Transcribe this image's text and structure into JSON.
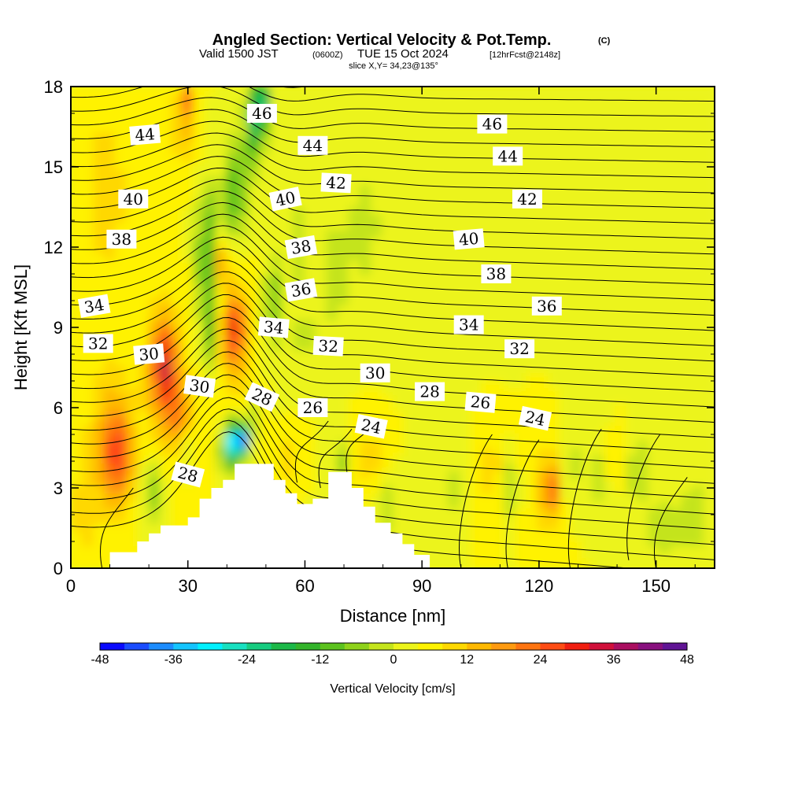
{
  "header": {
    "title_main": "Angled Section: Vertical Velocity & Pot.Temp.",
    "title_mark": "(C)",
    "valid_prefix": "Valid 1500 JST",
    "valid_utc": "(0600Z)",
    "valid_date": "TUE 15 Oct 2024",
    "forecast": "[12hrFcst@2148z]",
    "slice": "slice X,Y= 34,23@135°"
  },
  "colors": {
    "velocity_palette": [
      "#0a0aff",
      "#1a4cff",
      "#1c8cff",
      "#14c4ff",
      "#00f0ff",
      "#17e0c0",
      "#16cc80",
      "#1cb848",
      "#33b42a",
      "#5cc21e",
      "#8ed21a",
      "#c4e41c",
      "#ecf41a",
      "#fff200",
      "#ffd800",
      "#ffb800",
      "#ff9a10",
      "#ff7410",
      "#ff4c14",
      "#f01e10",
      "#d0103a",
      "#aa0e60",
      "#88107e",
      "#601494"
    ],
    "contour": "#000000",
    "terrain": "#ffffff"
  },
  "chart_data": {
    "type": "heatmap",
    "title": "Angled Section: Vertical Velocity & Pot.Temp.",
    "xlabel": "Distance [nm]",
    "ylabel": "Height [Kft MSL]",
    "xlim": [
      0,
      165
    ],
    "ylim": [
      0,
      18
    ],
    "x_ticks": [
      0,
      30,
      60,
      90,
      120,
      150
    ],
    "y_ticks": [
      0,
      3,
      6,
      9,
      12,
      15,
      18
    ],
    "colorbar": {
      "label": "Vertical Velocity [cm/s]",
      "min": -48,
      "max": 48,
      "step": 4,
      "ticks": [
        -48,
        -36,
        -24,
        -12,
        0,
        12,
        24,
        36,
        48
      ]
    },
    "terrain_profile": [
      [
        0,
        0
      ],
      [
        10,
        0
      ],
      [
        10,
        0.6
      ],
      [
        17,
        0.6
      ],
      [
        17,
        1.0
      ],
      [
        20,
        1.0
      ],
      [
        20,
        1.3
      ],
      [
        23,
        1.3
      ],
      [
        23,
        1.6
      ],
      [
        30,
        1.6
      ],
      [
        30,
        1.9
      ],
      [
        33,
        1.9
      ],
      [
        33,
        2.6
      ],
      [
        36,
        2.6
      ],
      [
        36,
        3.0
      ],
      [
        39,
        3.0
      ],
      [
        39,
        3.3
      ],
      [
        42,
        3.3
      ],
      [
        42,
        3.9
      ],
      [
        52,
        3.9
      ],
      [
        52,
        3.3
      ],
      [
        55,
        3.3
      ],
      [
        55,
        2.8
      ],
      [
        58,
        2.8
      ],
      [
        58,
        2.4
      ],
      [
        62,
        2.4
      ],
      [
        62,
        2.6
      ],
      [
        66,
        2.6
      ],
      [
        66,
        3.6
      ],
      [
        72,
        3.6
      ],
      [
        72,
        3.0
      ],
      [
        75,
        3.0
      ],
      [
        75,
        2.3
      ],
      [
        78,
        2.3
      ],
      [
        78,
        1.7
      ],
      [
        82,
        1.7
      ],
      [
        82,
        1.3
      ],
      [
        85,
        1.3
      ],
      [
        85,
        0.9
      ],
      [
        88,
        0.9
      ],
      [
        88,
        0.5
      ],
      [
        92,
        0.5
      ],
      [
        92,
        0
      ],
      [
        165,
        0
      ]
    ],
    "isentropes": [
      {
        "theta": 24,
        "label_at": [
          77,
          5.3
        ]
      },
      {
        "theta": 26,
        "label_at": [
          62,
          6.0
        ]
      },
      {
        "theta": 28,
        "label_at": [
          49,
          6.4
        ]
      },
      {
        "theta": 30,
        "label_at": [
          40,
          7.5
        ]
      },
      {
        "theta": 32,
        "label_at": [
          66,
          8.3
        ]
      },
      {
        "theta": 34,
        "label_at": [
          52,
          9.0
        ]
      },
      {
        "theta": 36,
        "label_at": [
          59,
          10.4
        ]
      },
      {
        "theta": 38,
        "label_at": [
          59,
          12.0
        ]
      },
      {
        "theta": 40,
        "label_at": [
          55,
          13.8
        ]
      },
      {
        "theta": 42,
        "label_at": [
          68,
          14.4
        ]
      },
      {
        "theta": 44,
        "label_at": [
          60,
          15.8
        ]
      },
      {
        "theta": 46,
        "label_at": [
          45,
          17.0
        ]
      }
    ],
    "contour_labels": [
      {
        "text": "46",
        "x": 49,
        "y": 17.0,
        "rot": 0
      },
      {
        "text": "46",
        "x": 108,
        "y": 16.6,
        "rot": 0
      },
      {
        "text": "44",
        "x": 19,
        "y": 16.2,
        "rot": 5
      },
      {
        "text": "44",
        "x": 62,
        "y": 15.8,
        "rot": 0
      },
      {
        "text": "44",
        "x": 112,
        "y": 15.4,
        "rot": 0
      },
      {
        "text": "42",
        "x": 68,
        "y": 14.4,
        "rot": -3
      },
      {
        "text": "42",
        "x": 117,
        "y": 13.8,
        "rot": 0
      },
      {
        "text": "40",
        "x": 16,
        "y": 13.8,
        "rot": 0
      },
      {
        "text": "40",
        "x": 55,
        "y": 13.8,
        "rot": 12
      },
      {
        "text": "40",
        "x": 102,
        "y": 12.3,
        "rot": 5
      },
      {
        "text": "38",
        "x": 13,
        "y": 12.3,
        "rot": 0
      },
      {
        "text": "38",
        "x": 59,
        "y": 12.0,
        "rot": 10
      },
      {
        "text": "38",
        "x": 109,
        "y": 11.0,
        "rot": 0
      },
      {
        "text": "36",
        "x": 59,
        "y": 10.4,
        "rot": 10
      },
      {
        "text": "36",
        "x": 122,
        "y": 9.8,
        "rot": 0
      },
      {
        "text": "34",
        "x": 6,
        "y": 9.8,
        "rot": 10
      },
      {
        "text": "34",
        "x": 52,
        "y": 9.0,
        "rot": -5
      },
      {
        "text": "34",
        "x": 102,
        "y": 9.1,
        "rot": 0
      },
      {
        "text": "32",
        "x": 7,
        "y": 8.4,
        "rot": 0
      },
      {
        "text": "32",
        "x": 66,
        "y": 8.3,
        "rot": -3
      },
      {
        "text": "32",
        "x": 115,
        "y": 8.2,
        "rot": 0
      },
      {
        "text": "30",
        "x": 20,
        "y": 8.0,
        "rot": 5
      },
      {
        "text": "30",
        "x": 33,
        "y": 6.8,
        "rot": -8
      },
      {
        "text": "30",
        "x": 78,
        "y": 7.3,
        "rot": 0
      },
      {
        "text": "28",
        "x": 49,
        "y": 6.4,
        "rot": -25
      },
      {
        "text": "28",
        "x": 92,
        "y": 6.6,
        "rot": 0
      },
      {
        "text": "28",
        "x": 30,
        "y": 3.5,
        "rot": -15
      },
      {
        "text": "26",
        "x": 62,
        "y": 6.0,
        "rot": 0
      },
      {
        "text": "26",
        "x": 105,
        "y": 6.2,
        "rot": -5
      },
      {
        "text": "24",
        "x": 77,
        "y": 5.3,
        "rot": -12
      },
      {
        "text": "24",
        "x": 119,
        "y": 5.6,
        "rot": -12
      }
    ]
  }
}
